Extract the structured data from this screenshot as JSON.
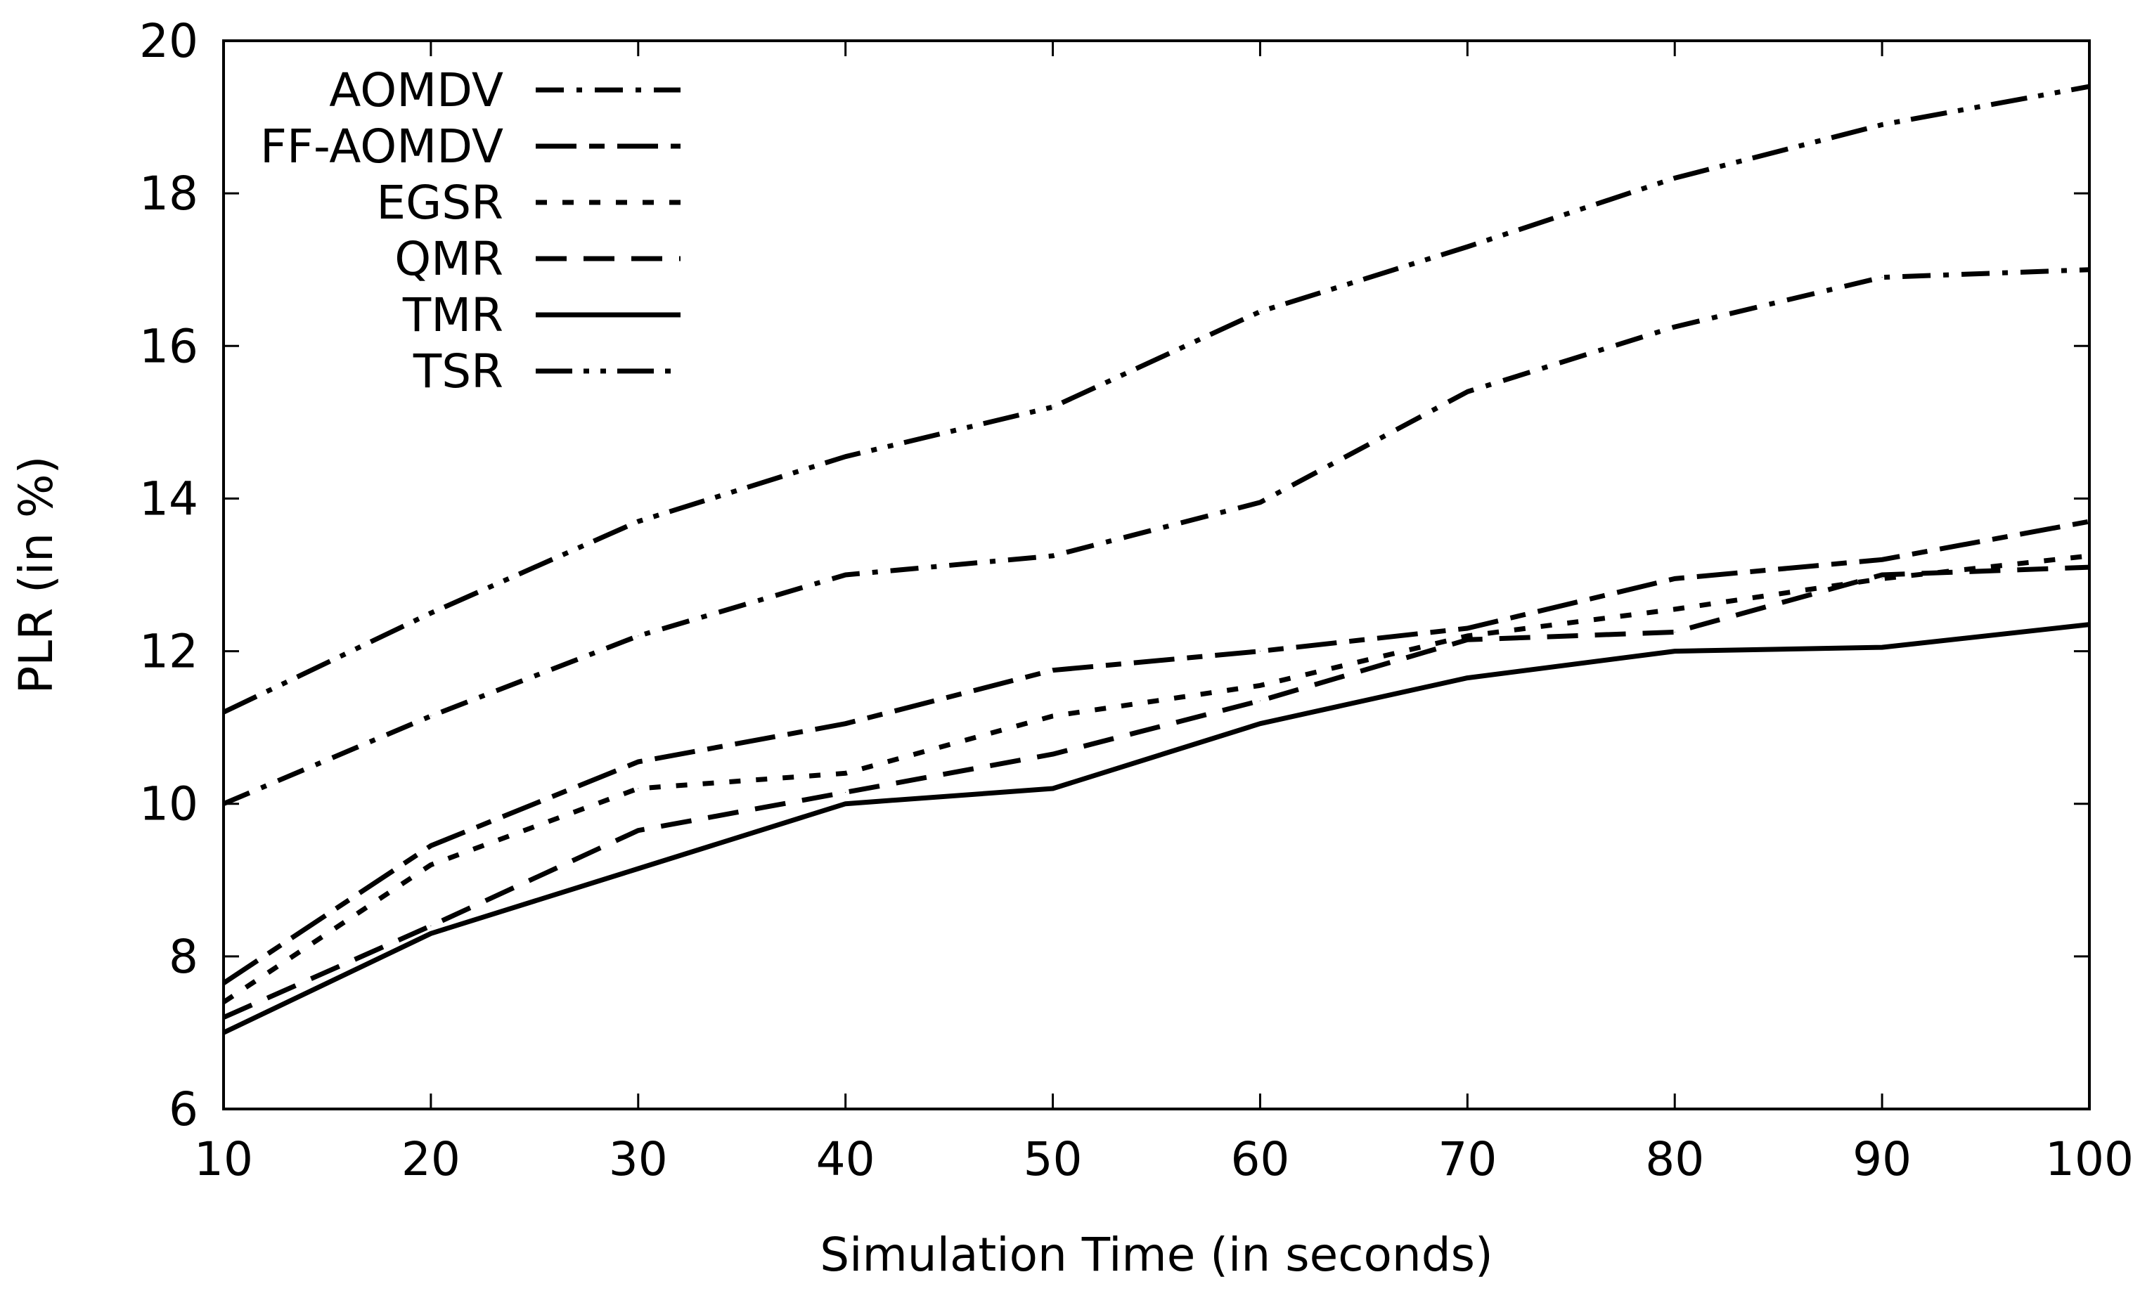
{
  "chart_data": {
    "type": "line",
    "title": "",
    "xlabel": "Simulation Time (in seconds)",
    "ylabel": "PLR (in %)",
    "xlim": [
      10,
      100
    ],
    "ylim": [
      6,
      20
    ],
    "xticks": [
      10,
      20,
      30,
      40,
      50,
      60,
      70,
      80,
      90,
      100
    ],
    "yticks": [
      6,
      8,
      10,
      12,
      14,
      16,
      18,
      20
    ],
    "grid": false,
    "legend_position": "top-left",
    "x": [
      10,
      20,
      30,
      40,
      50,
      60,
      70,
      80,
      90,
      100
    ],
    "series": [
      {
        "name": "AOMDV",
        "dash": "dash-dot",
        "values": [
          10.0,
          11.15,
          12.2,
          13.0,
          13.25,
          13.95,
          15.4,
          16.25,
          16.9,
          17.0
        ]
      },
      {
        "name": "FF-AOMDV",
        "dash": "long-dash",
        "values": [
          7.65,
          9.45,
          10.55,
          11.05,
          11.75,
          12.0,
          12.3,
          12.95,
          13.2,
          13.7
        ]
      },
      {
        "name": "EGSR",
        "dash": "short-dash",
        "values": [
          7.4,
          9.2,
          10.2,
          10.4,
          11.15,
          11.55,
          12.2,
          12.55,
          12.95,
          13.25
        ]
      },
      {
        "name": "QMR",
        "dash": "dash",
        "values": [
          7.2,
          8.4,
          9.65,
          10.15,
          10.65,
          11.35,
          12.15,
          12.25,
          13.0,
          13.1
        ]
      },
      {
        "name": "TMR",
        "dash": "solid",
        "values": [
          7.0,
          8.3,
          9.15,
          10.0,
          10.2,
          11.05,
          11.65,
          12.0,
          12.05,
          12.35
        ]
      },
      {
        "name": "TSR",
        "dash": "dash-dot-dot",
        "values": [
          11.2,
          12.5,
          13.7,
          14.55,
          15.2,
          16.45,
          17.3,
          18.2,
          18.9,
          19.4
        ]
      }
    ]
  }
}
